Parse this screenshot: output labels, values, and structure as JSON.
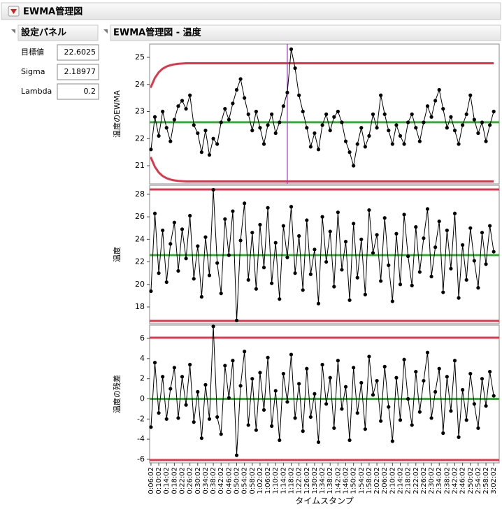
{
  "header": {
    "title": "EWMA管理図"
  },
  "panel": {
    "title": "設定パネル",
    "fields": [
      {
        "label": "目標値",
        "value": 22.6025
      },
      {
        "label": "Sigma",
        "value": 2.18977
      },
      {
        "label": "Lambda",
        "value": 0.2
      }
    ]
  },
  "report_title": "EWMA管理図 - 温度",
  "chart_data": {
    "type": "line",
    "xlabel": "タイムスタンプ",
    "colors": {
      "points": "#000000",
      "center": "#2fb12f",
      "limits": "#e0364c",
      "cursor": "#9933cc"
    },
    "cursor_x": 4562,
    "xlim": [
      320,
      11090
    ],
    "x": [
      362,
      482,
      602,
      722,
      842,
      962,
      1082,
      1202,
      1322,
      1442,
      1562,
      1682,
      1802,
      1922,
      2042,
      2162,
      2282,
      2402,
      2522,
      2642,
      2762,
      2882,
      3002,
      3122,
      3242,
      3362,
      3482,
      3602,
      3722,
      3842,
      3962,
      4082,
      4202,
      4322,
      4442,
      4562,
      4682,
      4802,
      4922,
      5042,
      5162,
      5282,
      5402,
      5522,
      5642,
      5762,
      5882,
      6002,
      6122,
      6242,
      6362,
      6482,
      6602,
      6722,
      6842,
      6962,
      7082,
      7202,
      7322,
      7442,
      7562,
      7682,
      7802,
      7922,
      8042,
      8162,
      8282,
      8402,
      8522,
      8642,
      8762,
      8882,
      9002,
      9122,
      9242,
      9362,
      9482,
      9602,
      9722,
      9842,
      9962,
      10082,
      10202,
      10322,
      10442,
      10562,
      10682,
      10802,
      10922
    ],
    "xticks": [
      {
        "value": 362,
        "label": "0:06:02"
      },
      {
        "value": 602,
        "label": "0:10:02"
      },
      {
        "value": 842,
        "label": "0:14:02"
      },
      {
        "value": 1082,
        "label": "0:18:02"
      },
      {
        "value": 1322,
        "label": "0:22:02"
      },
      {
        "value": 1562,
        "label": "0:26:02"
      },
      {
        "value": 1802,
        "label": "0:30:02"
      },
      {
        "value": 2042,
        "label": "0:34:02"
      },
      {
        "value": 2282,
        "label": "0:38:02"
      },
      {
        "value": 2522,
        "label": "0:42:02"
      },
      {
        "value": 2762,
        "label": "0:46:02"
      },
      {
        "value": 3002,
        "label": "0:50:02"
      },
      {
        "value": 3242,
        "label": "0:54:02"
      },
      {
        "value": 3482,
        "label": "0:58:02"
      },
      {
        "value": 3722,
        "label": "1:02:02"
      },
      {
        "value": 3962,
        "label": "1:06:02"
      },
      {
        "value": 4202,
        "label": "1:10:02"
      },
      {
        "value": 4442,
        "label": "1:14:02"
      },
      {
        "value": 4682,
        "label": "1:18:02"
      },
      {
        "value": 4922,
        "label": "1:22:02"
      },
      {
        "value": 5162,
        "label": "1:26:02"
      },
      {
        "value": 5402,
        "label": "1:30:02"
      },
      {
        "value": 5642,
        "label": "1:34:02"
      },
      {
        "value": 5882,
        "label": "1:38:02"
      },
      {
        "value": 6122,
        "label": "1:42:02"
      },
      {
        "value": 6362,
        "label": "1:46:02"
      },
      {
        "value": 6602,
        "label": "1:50:02"
      },
      {
        "value": 6842,
        "label": "1:54:02"
      },
      {
        "value": 7082,
        "label": "1:58:02"
      },
      {
        "value": 7322,
        "label": "2:02:02"
      },
      {
        "value": 7562,
        "label": "2:06:02"
      },
      {
        "value": 7802,
        "label": "2:10:02"
      },
      {
        "value": 8042,
        "label": "2:14:02"
      },
      {
        "value": 8282,
        "label": "2:18:02"
      },
      {
        "value": 8522,
        "label": "2:22:02"
      },
      {
        "value": 8762,
        "label": "2:26:02"
      },
      {
        "value": 9002,
        "label": "2:30:02"
      },
      {
        "value": 9242,
        "label": "2:34:02"
      },
      {
        "value": 9482,
        "label": "2:38:02"
      },
      {
        "value": 9722,
        "label": "2:42:02"
      },
      {
        "value": 9962,
        "label": "2:46:02"
      },
      {
        "value": 10202,
        "label": "2:50:02"
      },
      {
        "value": 10442,
        "label": "2:54:02"
      },
      {
        "value": 10682,
        "label": "2:58:02"
      },
      {
        "value": 10922,
        "label": "3:02:02"
      }
    ],
    "panels": [
      {
        "ylabel": "温度のEWMA",
        "ylim": [
          20.33,
          25.49
        ],
        "yticks": [
          21,
          22,
          23,
          24,
          25
        ],
        "center": 22.6025,
        "ucl": [
          23.91,
          24.24,
          24.45,
          24.58,
          24.66,
          24.71,
          24.74,
          24.76,
          24.77,
          24.78,
          24.78,
          24.78,
          24.78,
          24.78,
          24.78,
          24.78,
          24.78,
          24.78,
          24.78,
          24.78,
          24.78,
          24.78,
          24.78,
          24.78,
          24.78,
          24.78,
          24.78,
          24.78,
          24.78,
          24.78,
          24.78,
          24.78,
          24.78,
          24.78,
          24.78,
          24.78,
          24.78,
          24.78,
          24.78,
          24.78,
          24.78,
          24.78,
          24.78,
          24.78,
          24.78,
          24.78,
          24.78,
          24.78,
          24.78,
          24.78,
          24.78,
          24.78,
          24.78,
          24.78,
          24.78,
          24.78,
          24.78,
          24.78,
          24.78,
          24.78,
          24.78,
          24.78,
          24.78,
          24.78,
          24.78,
          24.78,
          24.78,
          24.78,
          24.78,
          24.78,
          24.78,
          24.78,
          24.78,
          24.78,
          24.78,
          24.78,
          24.78,
          24.78,
          24.78,
          24.78,
          24.78,
          24.78,
          24.78,
          24.78,
          24.78,
          24.78,
          24.78,
          24.78,
          24.78
        ],
        "lcl": [
          21.29,
          20.96,
          20.75,
          20.62,
          20.54,
          20.49,
          20.46,
          20.44,
          20.43,
          20.42,
          20.42,
          20.42,
          20.42,
          20.42,
          20.42,
          20.42,
          20.42,
          20.42,
          20.42,
          20.42,
          20.42,
          20.42,
          20.42,
          20.42,
          20.42,
          20.42,
          20.42,
          20.42,
          20.42,
          20.42,
          20.42,
          20.42,
          20.42,
          20.42,
          20.42,
          20.42,
          20.42,
          20.42,
          20.42,
          20.42,
          20.42,
          20.42,
          20.42,
          20.42,
          20.42,
          20.42,
          20.42,
          20.42,
          20.42,
          20.42,
          20.42,
          20.42,
          20.42,
          20.42,
          20.42,
          20.42,
          20.42,
          20.42,
          20.42,
          20.42,
          20.42,
          20.42,
          20.42,
          20.42,
          20.42,
          20.42,
          20.42,
          20.42,
          20.42,
          20.42,
          20.42,
          20.42,
          20.42,
          20.42,
          20.42,
          20.42,
          20.42,
          20.42,
          20.42,
          20.42,
          20.42,
          20.42,
          20.42,
          20.42,
          20.42,
          20.42,
          20.42,
          20.42,
          20.42
        ],
        "values": [
          21.6,
          22.8,
          22.1,
          23.0,
          22.4,
          21.9,
          22.7,
          23.2,
          23.4,
          23.1,
          23.6,
          22.5,
          22.2,
          21.5,
          22.3,
          21.4,
          22.0,
          21.8,
          22.6,
          23.1,
          22.7,
          23.3,
          23.8,
          24.2,
          23.5,
          22.9,
          22.3,
          23.0,
          22.4,
          21.8,
          22.5,
          22.9,
          22.2,
          22.6,
          23.2,
          23.7,
          25.3,
          24.6,
          23.6,
          23.0,
          22.4,
          21.7,
          22.2,
          21.6,
          22.5,
          22.9,
          22.3,
          22.8,
          23.0,
          22.6,
          21.9,
          21.5,
          21.0,
          21.8,
          22.4,
          21.7,
          22.1,
          22.9,
          22.4,
          23.6,
          22.9,
          22.3,
          21.8,
          22.5,
          22.1,
          21.8,
          22.6,
          22.9,
          22.4,
          21.9,
          22.6,
          23.2,
          22.8,
          23.4,
          23.8,
          23.1,
          22.4,
          22.8,
          22.3,
          21.8,
          22.5,
          22.9,
          23.6,
          22.7,
          22.2,
          22.6,
          21.9,
          22.5,
          23.0
        ]
      },
      {
        "ylabel": "温度",
        "ylim": [
          16.51,
          28.8
        ],
        "yticks": [
          18,
          20,
          22,
          24,
          26,
          28
        ],
        "center": 22.6025,
        "ucl": 28.43,
        "lcl": 16.76,
        "values": [
          19.4,
          26.3,
          21.0,
          24.8,
          20.2,
          23.6,
          25.5,
          21.2,
          24.9,
          22.3,
          26.1,
          20.5,
          23.4,
          18.9,
          24.2,
          20.8,
          28.4,
          21.9,
          19.2,
          25.8,
          22.6,
          26.5,
          16.8,
          23.9,
          27.2,
          20.4,
          24.6,
          19.6,
          25.3,
          21.5,
          26.8,
          20.1,
          23.7,
          18.7,
          25.2,
          22.4,
          26.9,
          21.0,
          24.3,
          19.5,
          25.7,
          20.9,
          23.1,
          18.3,
          26.0,
          22.0,
          24.7,
          19.8,
          26.4,
          21.3,
          23.8,
          18.6,
          25.4,
          20.6,
          24.0,
          19.1,
          26.6,
          22.8,
          24.4,
          20.3,
          25.9,
          21.7,
          18.5,
          24.5,
          20.0,
          26.2,
          22.5,
          19.9,
          25.1,
          21.1,
          24.1,
          26.7,
          20.7,
          23.3,
          25.6,
          19.3,
          24.8,
          21.4,
          26.3,
          18.8,
          23.5,
          20.4,
          25.0,
          22.1,
          19.7,
          24.6,
          21.8,
          25.2,
          22.9
        ]
      },
      {
        "ylabel": "温度の残差",
        "ylim": [
          -6.35,
          7.32
        ],
        "yticks": [
          -6,
          -4,
          -2,
          0,
          2,
          4,
          6
        ],
        "center": 0,
        "ucl": 6.07,
        "lcl": -6.07,
        "values": [
          -2.8,
          3.6,
          -1.4,
          2.2,
          -2.0,
          1.0,
          3.1,
          -1.9,
          2.2,
          -0.6,
          3.4,
          -2.3,
          0.7,
          -3.9,
          1.4,
          -2.0,
          7.2,
          -1.8,
          -3.5,
          3.3,
          0.1,
          3.8,
          -5.6,
          1.3,
          4.7,
          -2.6,
          2.0,
          -3.1,
          2.6,
          -1.1,
          4.1,
          -2.7,
          0.8,
          -4.1,
          2.5,
          -0.3,
          4.4,
          -1.9,
          1.5,
          -3.2,
          3.0,
          -1.8,
          0.5,
          -4.3,
          3.4,
          -0.5,
          2.1,
          -2.9,
          3.8,
          -1.0,
          1.2,
          -4.1,
          3.1,
          -1.4,
          1.6,
          -3.0,
          4.2,
          0.4,
          1.8,
          -2.2,
          3.2,
          -0.8,
          -4.2,
          2.1,
          -2.1,
          3.9,
          0.0,
          -2.6,
          2.7,
          -1.3,
          1.8,
          4.6,
          -1.9,
          0.7,
          3.0,
          -3.4,
          2.2,
          -1.2,
          3.8,
          -3.8,
          0.9,
          -2.1,
          2.5,
          -0.5,
          -2.9,
          2.0,
          -0.7,
          2.7,
          0.3
        ]
      }
    ]
  }
}
